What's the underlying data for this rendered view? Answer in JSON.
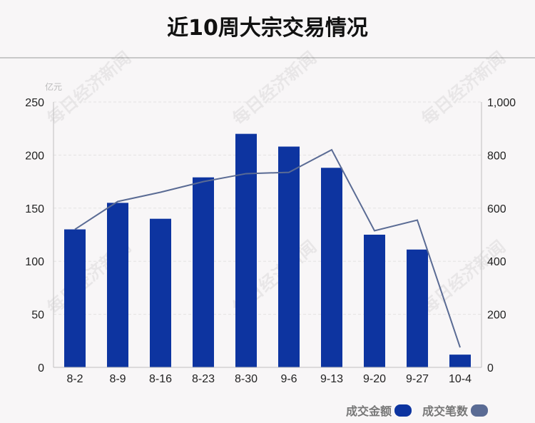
{
  "title": "近10周大宗交易情况",
  "watermark": "每日经济新闻",
  "chart_data": {
    "type": "bar",
    "categories": [
      "8-2",
      "8-9",
      "8-16",
      "8-23",
      "8-30",
      "9-6",
      "9-13",
      "9-20",
      "9-27",
      "10-4"
    ],
    "left_axis": {
      "unit": "亿元",
      "ylim": [
        0,
        250
      ],
      "ticks": [
        "0",
        "50",
        "100",
        "150",
        "200",
        "250"
      ]
    },
    "right_axis": {
      "unit": "",
      "ylim": [
        0,
        1000
      ],
      "ticks": [
        "0",
        "200",
        "400",
        "600",
        "800",
        "1,000"
      ]
    },
    "series": [
      {
        "name": "成交金额",
        "type": "bar",
        "axis": "left",
        "color": "#0d34a0",
        "values": [
          130,
          155,
          140,
          179,
          220,
          208,
          188,
          125,
          111,
          12
        ]
      },
      {
        "name": "成交笔数",
        "type": "line",
        "axis": "right",
        "color": "#5a6b94",
        "values": [
          520,
          625,
          660,
          700,
          730,
          735,
          820,
          515,
          555,
          75
        ]
      }
    ],
    "grid": true,
    "legend_position": "bottom-right"
  },
  "legend": [
    {
      "label": "成交金额",
      "color": "#0d34a0"
    },
    {
      "label": "成交笔数",
      "color": "#5a6b94"
    }
  ]
}
